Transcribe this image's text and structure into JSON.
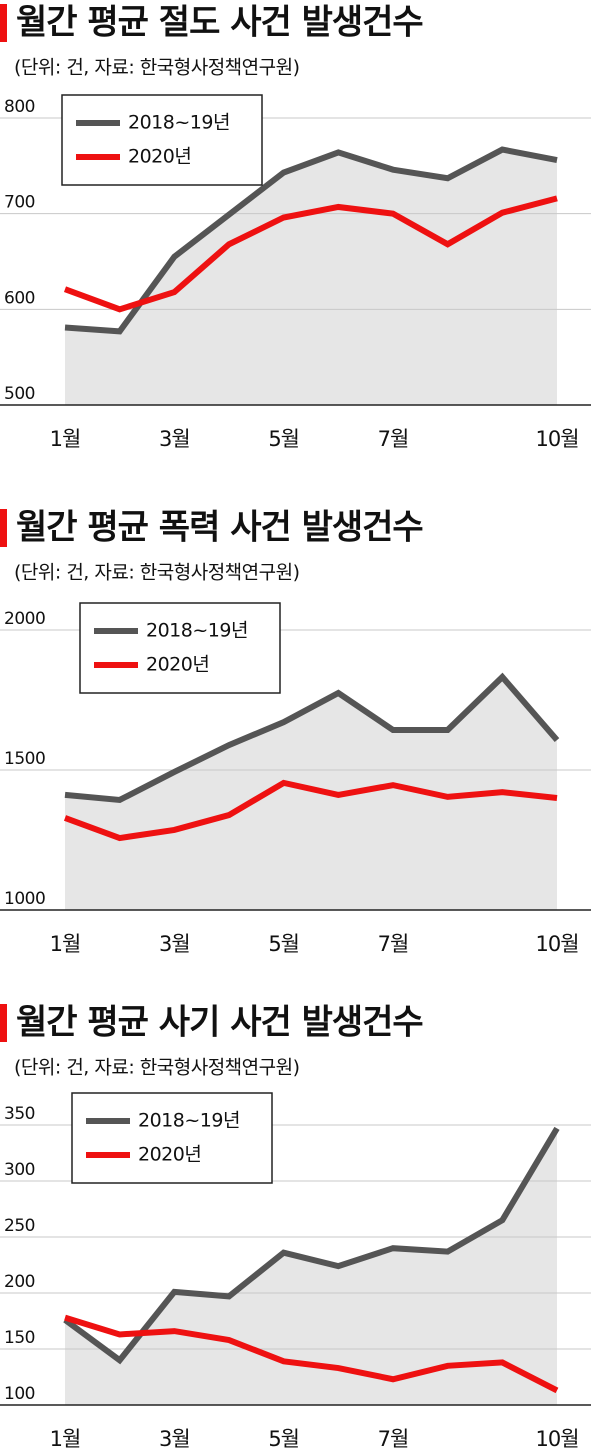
{
  "chart_data": [
    {
      "type": "line",
      "title": "월간 평균 절도 사건 발생건수",
      "subtitle": "(단위: 건, 자료: 한국형사정책연구원)",
      "categories": [
        "1월",
        null,
        "3월",
        null,
        "5월",
        null,
        "7월",
        null,
        null,
        "10월"
      ],
      "series": [
        {
          "name": "2018~19년",
          "color": "#555555",
          "area": true,
          "values": [
            581,
            577,
            655,
            699,
            743,
            764,
            746,
            737,
            767,
            756
          ]
        },
        {
          "name": "2020년",
          "color": "#ee1111",
          "area": false,
          "values": [
            621,
            600,
            618,
            668,
            696,
            707,
            700,
            668,
            701,
            716
          ]
        }
      ],
      "ylim": [
        500,
        800
      ],
      "yticks": [
        500,
        600,
        700,
        800
      ],
      "grid": true,
      "legend": "top-left"
    },
    {
      "type": "line",
      "title": "월간 평균 폭력 사건 발생건수",
      "subtitle": "(단위: 건, 자료: 한국형사정책연구원)",
      "categories": [
        "1월",
        null,
        "3월",
        null,
        "5월",
        null,
        "7월",
        null,
        null,
        "10월"
      ],
      "series": [
        {
          "name": "2018~19년",
          "color": "#555555",
          "area": true,
          "values": [
            1411,
            1393,
            1493,
            1589,
            1671,
            1775,
            1643,
            1643,
            1832,
            1607
          ]
        },
        {
          "name": "2020년",
          "color": "#ee1111",
          "area": false,
          "values": [
            1329,
            1257,
            1286,
            1339,
            1454,
            1411,
            1446,
            1404,
            1421,
            1400
          ]
        }
      ],
      "ylim": [
        1000,
        2000
      ],
      "yticks": [
        1000,
        1500,
        2000
      ],
      "grid": true,
      "legend": "top-left"
    },
    {
      "type": "line",
      "title": "월간 평균 사기 사건 발생건수",
      "subtitle": "(단위: 건, 자료: 한국형사정책연구원)",
      "categories": [
        "1월",
        null,
        "3월",
        null,
        "5월",
        null,
        "7월",
        null,
        null,
        "10월"
      ],
      "series": [
        {
          "name": "2018~19년",
          "color": "#555555",
          "area": true,
          "values": [
            176,
            140,
            201,
            197,
            236,
            224,
            240,
            237,
            265,
            347
          ]
        },
        {
          "name": "2020년",
          "color": "#ee1111",
          "area": false,
          "values": [
            178,
            163,
            166,
            158,
            139,
            133,
            123,
            135,
            138,
            113
          ]
        }
      ],
      "ylim": [
        100,
        350
      ],
      "yticks": [
        100,
        150,
        200,
        250,
        300,
        350
      ],
      "grid": true,
      "legend": "top-left"
    }
  ]
}
